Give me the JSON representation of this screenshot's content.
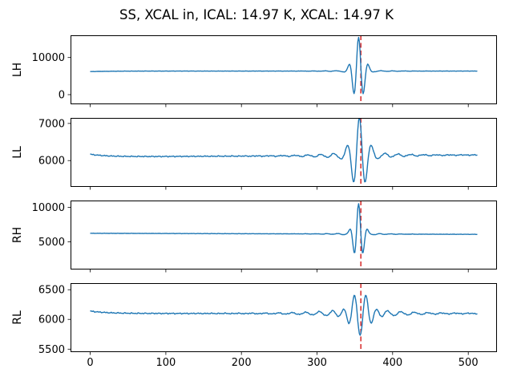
{
  "chart_data": {
    "type": "line",
    "title": "SS, XCAL in, ICAL: 14.97 K, XCAL: 14.97 K",
    "x_start": 0,
    "x_end": 512,
    "xlim": [
      -26,
      538
    ],
    "xticks": [
      0,
      100,
      200,
      300,
      400,
      500
    ],
    "cursor_x": 358,
    "cursor_style": "dashed",
    "colors": {
      "trace": "#1f77b4",
      "cursor": "#d62728",
      "axis": "#000000"
    },
    "legend": "none",
    "grid": false,
    "subplots": [
      {
        "ylabel": "LH",
        "yticks": [
          0,
          10000
        ],
        "ylim": [
          -2600,
          16000
        ],
        "baseline": 6350,
        "slope": 0,
        "start_bump": -150,
        "noise": 45,
        "burst_center": 355,
        "amp": 8800,
        "period": 13,
        "sigma": 7,
        "phase": 0,
        "ring_amp": 280,
        "ring_period": 15,
        "ring_decay": 28,
        "burst_peak": 15150,
        "burst_trough": 400
      },
      {
        "ylabel": "LL",
        "yticks": [
          6000,
          7000
        ],
        "ylim": [
          5290,
          7150
        ],
        "baseline": 6100,
        "slope": 0.1,
        "start_bump": 70,
        "noise": 18,
        "burst_center": 356,
        "amp": 900,
        "period": 16,
        "sigma": 9,
        "phase": 0,
        "ring_amp": 130,
        "ring_period": 17,
        "ring_decay": 40,
        "burst_peak": 7040,
        "burst_trough": 5560
      },
      {
        "ylabel": "RH",
        "yticks": [
          5000,
          10000
        ],
        "ylim": [
          1000,
          11000
        ],
        "baseline": 6250,
        "slope": -0.3,
        "start_bump": 0,
        "noise": 28,
        "burst_center": 355,
        "amp": 4200,
        "period": 12,
        "sigma": 6,
        "phase": 0,
        "ring_amp": 200,
        "ring_period": 14,
        "ring_decay": 26,
        "burst_peak": 10340,
        "burst_trough": 3600
      },
      {
        "ylabel": "RL",
        "yticks": [
          5500,
          6000,
          6500
        ],
        "ylim": [
          5450,
          6610
        ],
        "baseline": 6100,
        "slope": 0,
        "start_bump": 40,
        "noise": 12,
        "burst_center": 357,
        "amp": 470,
        "period": 16,
        "sigma": 12,
        "phase": 3.14159,
        "ring_amp": 100,
        "ring_period": 18,
        "ring_decay": 45,
        "burst_peak": 6480,
        "burst_trough": 5630
      }
    ]
  }
}
